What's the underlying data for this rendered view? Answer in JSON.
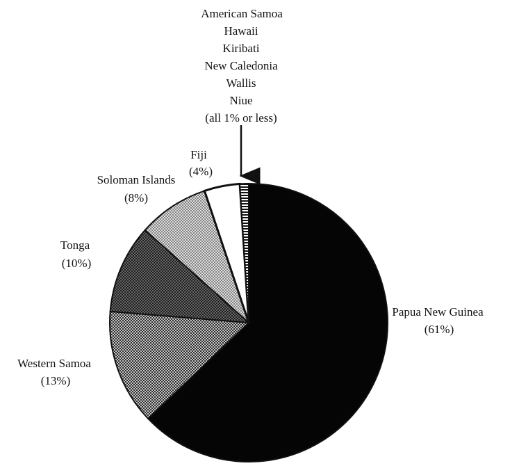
{
  "chart_data": {
    "type": "pie",
    "title": "",
    "slices": [
      {
        "label": "Papua New Guinea",
        "value": 61,
        "value_label": "(61%)",
        "color": "#050505",
        "pattern": "solid-black"
      },
      {
        "label": "Western Samoa",
        "value": 13,
        "value_label": "(13%)",
        "color": "#8f8f8f",
        "pattern": "dense-dots"
      },
      {
        "label": "Tonga",
        "value": 10,
        "value_label": "(10%)",
        "color": "#6b6b6b",
        "pattern": "crosshatch"
      },
      {
        "label": "Soloman Islands",
        "value": 8,
        "value_label": "(8%)",
        "color": "#b5b5b5",
        "pattern": "light-dots"
      },
      {
        "label": "Fiji",
        "value": 4,
        "value_label": "(4%)",
        "color": "#ffffff",
        "pattern": "white"
      },
      {
        "label": "American Samoa, Hawaii, Kiribati, New Caledonia, Wallis, Niue",
        "value": 1,
        "value_label": "",
        "color": "#111111",
        "pattern": "stripes"
      }
    ],
    "group_label_lines": [
      "American Samoa",
      "Hawaii",
      "Kiribati",
      "New Caledonia",
      "Wallis",
      "Niue",
      "(all 1% or less)"
    ],
    "legend": "none",
    "grid": false
  }
}
